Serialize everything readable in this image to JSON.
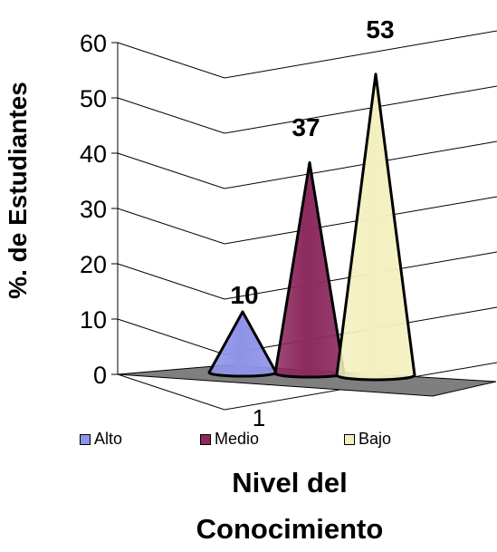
{
  "chart_data": {
    "type": "bar",
    "shape": "cone",
    "categories": [
      "1"
    ],
    "series": [
      {
        "name": "Alto",
        "values": [
          10
        ],
        "color": "#8f93e8"
      },
      {
        "name": "Medio",
        "values": [
          37
        ],
        "color": "#8c2a5e"
      },
      {
        "name": "Bajo",
        "values": [
          53
        ],
        "color": "#f3f0c0"
      }
    ],
    "data_labels": [
      "10",
      "37",
      "53"
    ],
    "ylabel": "%. de Estudiantes",
    "xlabel": "Nivel del Conocimiento",
    "ylim": [
      0,
      60
    ],
    "yticks": [
      "0",
      "10",
      "20",
      "30",
      "40",
      "50",
      "60"
    ],
    "grid": true,
    "legend_position": "bottom",
    "floor_color": "#7f7f7f"
  }
}
